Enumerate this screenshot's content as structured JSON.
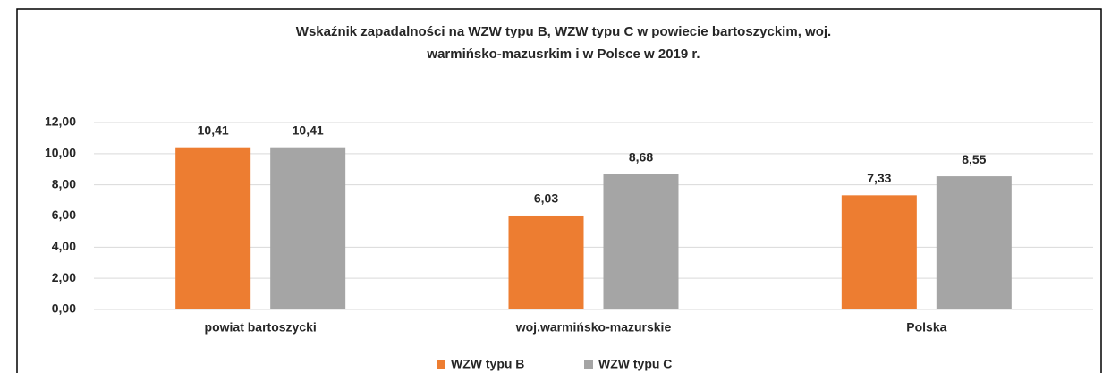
{
  "chart_data": {
    "type": "bar",
    "title": [
      "Wskaźnik zapadalności  na WZW typu B, WZW typu C w powiecie bartoszyckim,  woj.",
      "warmińsko-mazusrkim  i w Polsce w 2019 r."
    ],
    "categories": [
      "powiat bartoszycki",
      "woj.warmińsko-mazurskie",
      "Polska"
    ],
    "series": [
      {
        "name": "WZW typu B",
        "color": "#ed7d31",
        "values": [
          10.41,
          6.03,
          7.33
        ],
        "value_labels": [
          "10,41",
          "6,03",
          "7,33"
        ]
      },
      {
        "name": "WZW typu C",
        "color": "#a5a5a5",
        "values": [
          10.41,
          8.68,
          8.55
        ],
        "value_labels": [
          "10,41",
          "8,68",
          "8,55"
        ]
      }
    ],
    "ylim": [
      0,
      12
    ],
    "yticks": [
      {
        "value": 0,
        "label": "0,00"
      },
      {
        "value": 2,
        "label": "2,00"
      },
      {
        "value": 4,
        "label": "4,00"
      },
      {
        "value": 6,
        "label": "6,00"
      },
      {
        "value": 8,
        "label": "8,00"
      },
      {
        "value": 10,
        "label": "10,00"
      },
      {
        "value": 12,
        "label": "12,00"
      }
    ],
    "grid": true,
    "legend": "bottom"
  }
}
